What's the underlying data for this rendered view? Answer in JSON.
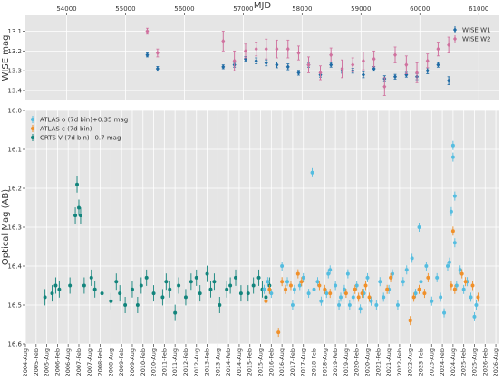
{
  "colors": {
    "panel_bg": "#e5e5e5",
    "grid": "#ffffff",
    "wise_w1": "#1f6ba5",
    "wise_w2": "#d0729f",
    "atlas_o": "#55bde0",
    "atlas_c": "#f0902a",
    "crts_v": "#12847c"
  },
  "chart_data": [
    {
      "type": "scatter",
      "panel": "top",
      "title": "",
      "xlabel": "MJD",
      "ylabel": "WISE mag",
      "xlim": [
        53300,
        61350
      ],
      "ylim": [
        13.45,
        13.02
      ],
      "y_inverted": true,
      "x_ticks": [
        54000,
        55000,
        56000,
        57000,
        58000,
        59000,
        60000,
        61000
      ],
      "y_ticks": [
        13.1,
        13.2,
        13.3,
        13.4
      ],
      "x_tick_labels": [
        "54000",
        "55000",
        "56000",
        "57000",
        "58000",
        "59000",
        "60000",
        "61000"
      ],
      "y_tick_labels": [
        "13.1",
        "13.2",
        "13.3",
        "13.4"
      ],
      "grid": true,
      "legend_position": "top-right",
      "series": [
        {
          "name": "WISE W1",
          "marker": "diamond",
          "x": [
            55370,
            55545,
            56660,
            56850,
            57040,
            57220,
            57390,
            57570,
            57760,
            57940,
            58110,
            58310,
            58490,
            58680,
            58860,
            59040,
            59220,
            59400,
            59580,
            59770,
            59950,
            60130,
            60310,
            60490
          ],
          "y": [
            13.22,
            13.29,
            13.28,
            13.27,
            13.24,
            13.25,
            13.26,
            13.27,
            13.28,
            13.31,
            13.27,
            13.32,
            13.27,
            13.3,
            13.3,
            13.32,
            13.29,
            13.34,
            13.33,
            13.32,
            13.33,
            13.3,
            13.27,
            13.35
          ],
          "err": [
            0.01,
            0.012,
            0.01,
            0.012,
            0.012,
            0.015,
            0.015,
            0.015,
            0.015,
            0.012,
            0.012,
            0.012,
            0.012,
            0.012,
            0.012,
            0.015,
            0.012,
            0.015,
            0.012,
            0.012,
            0.015,
            0.015,
            0.012,
            0.02
          ]
        },
        {
          "name": "WISE W2",
          "marker": "diamond",
          "x": [
            55370,
            55545,
            56660,
            56850,
            57040,
            57220,
            57390,
            57570,
            57760,
            57940,
            58110,
            58310,
            58490,
            58680,
            58860,
            59040,
            59220,
            59400,
            59580,
            59770,
            59950,
            60130,
            60310,
            60490
          ],
          "y": [
            13.1,
            13.21,
            13.15,
            13.25,
            13.2,
            13.19,
            13.19,
            13.19,
            13.19,
            13.21,
            13.27,
            13.31,
            13.22,
            13.29,
            13.27,
            13.25,
            13.24,
            13.38,
            13.22,
            13.27,
            13.31,
            13.25,
            13.19,
            13.17
          ],
          "err": [
            0.015,
            0.02,
            0.05,
            0.05,
            0.035,
            0.035,
            0.05,
            0.045,
            0.045,
            0.035,
            0.04,
            0.035,
            0.035,
            0.045,
            0.035,
            0.045,
            0.04,
            0.045,
            0.04,
            0.045,
            0.05,
            0.035,
            0.035,
            0.04
          ]
        }
      ]
    },
    {
      "type": "scatter",
      "panel": "bottom",
      "title": "",
      "xlabel": "",
      "ylabel": "Optical Mag (AB)",
      "xlim": [
        "2004-08",
        "2026-10"
      ],
      "ylim": [
        16.6,
        16.0
      ],
      "y_inverted": true,
      "y_ticks": [
        16.0,
        16.1,
        16.2,
        16.3,
        16.4,
        16.5,
        16.6
      ],
      "y_tick_labels": [
        "16.0",
        "16.1",
        "16.2",
        "16.3",
        "16.4",
        "16.5",
        "16.6"
      ],
      "x_tick_labels": [
        "2004-Aug",
        "2005-Feb",
        "2005-Aug",
        "2006-Feb",
        "2006-Aug",
        "2007-Feb",
        "2007-Aug",
        "2008-Feb",
        "2008-Aug",
        "2009-Feb",
        "2009-Aug",
        "2010-Feb",
        "2010-Aug",
        "2011-Feb",
        "2011-Aug",
        "2012-Feb",
        "2012-Aug",
        "2013-Feb",
        "2013-Aug",
        "2014-Feb",
        "2014-Aug",
        "2015-Feb",
        "2015-Aug",
        "2016-Feb",
        "2016-Aug",
        "2017-Feb",
        "2017-Aug",
        "2018-Feb",
        "2018-Aug",
        "2019-Feb",
        "2019-Aug",
        "2020-Feb",
        "2020-Aug",
        "2021-Feb",
        "2021-Aug",
        "2022-Feb",
        "2022-Aug",
        "2023-Feb",
        "2023-Aug",
        "2024-Feb",
        "2024-Aug",
        "2025-Feb",
        "2025-Aug",
        "2026-Feb",
        "2026-Aug"
      ],
      "grid": true,
      "legend_position": "top-left",
      "series": [
        {
          "name": "ATLAS o (7d bin)+0.35 mag",
          "marker": "circle",
          "points": [
            [
              "2015-10",
              16.46
            ],
            [
              "2015-12",
              16.44
            ],
            [
              "2016-02",
              16.47
            ],
            [
              "2016-08",
              16.4
            ],
            [
              "2016-11",
              16.44
            ],
            [
              "2017-02",
              16.5
            ],
            [
              "2017-03",
              16.46
            ],
            [
              "2017-06",
              16.45
            ],
            [
              "2017-08",
              16.43
            ],
            [
              "2017-11",
              16.47
            ],
            [
              "2018-01",
              16.16
            ],
            [
              "2018-02",
              16.46
            ],
            [
              "2018-04",
              16.44
            ],
            [
              "2018-06",
              16.49
            ],
            [
              "2018-09",
              16.47
            ],
            [
              "2018-10",
              16.42
            ],
            [
              "2018-11",
              16.41
            ],
            [
              "2019-02",
              16.45
            ],
            [
              "2019-04",
              16.5
            ],
            [
              "2019-05",
              16.48
            ],
            [
              "2019-07",
              16.46
            ],
            [
              "2019-09",
              16.42
            ],
            [
              "2019-10",
              16.5
            ],
            [
              "2019-12",
              16.48
            ],
            [
              "2020-02",
              16.45
            ],
            [
              "2020-04",
              16.51
            ],
            [
              "2020-06",
              16.47
            ],
            [
              "2020-08",
              16.43
            ],
            [
              "2020-10",
              16.49
            ],
            [
              "2021-01",
              16.5
            ],
            [
              "2021-03",
              16.44
            ],
            [
              "2021-05",
              16.48
            ],
            [
              "2021-08",
              16.46
            ],
            [
              "2021-10",
              16.42
            ],
            [
              "2022-01",
              16.5
            ],
            [
              "2022-04",
              16.44
            ],
            [
              "2022-06",
              16.41
            ],
            [
              "2022-09",
              16.38
            ],
            [
              "2022-11",
              16.47
            ],
            [
              "2023-01",
              16.3
            ],
            [
              "2023-02",
              16.44
            ],
            [
              "2023-05",
              16.4
            ],
            [
              "2023-08",
              16.49
            ],
            [
              "2023-11",
              16.43
            ],
            [
              "2024-01",
              16.48
            ],
            [
              "2024-03",
              16.52
            ],
            [
              "2024-05",
              16.4
            ],
            [
              "2024-06",
              16.39
            ],
            [
              "2024-07",
              16.26
            ],
            [
              "2024-08",
              16.09
            ],
            [
              "2024-08",
              16.12
            ],
            [
              "2024-09",
              16.22
            ],
            [
              "2024-09",
              16.34
            ],
            [
              "2024-10",
              16.45
            ],
            [
              "2024-12",
              16.41
            ],
            [
              "2025-02",
              16.46
            ],
            [
              "2025-04",
              16.44
            ],
            [
              "2025-06",
              16.48
            ],
            [
              "2025-08",
              16.53
            ],
            [
              "2025-09",
              16.5
            ]
          ]
        },
        {
          "name": "ATLAS c (7d bin)",
          "marker": "circle",
          "points": [
            [
              "2015-11",
              16.49
            ],
            [
              "2016-01",
              16.46
            ],
            [
              "2016-06",
              16.57
            ],
            [
              "2016-08",
              16.44
            ],
            [
              "2016-10",
              16.46
            ],
            [
              "2017-01",
              16.45
            ],
            [
              "2017-05",
              16.42
            ],
            [
              "2017-07",
              16.44
            ],
            [
              "2018-05",
              16.45
            ],
            [
              "2018-08",
              16.46
            ],
            [
              "2018-11",
              16.47
            ],
            [
              "2019-08",
              16.47
            ],
            [
              "2020-01",
              16.46
            ],
            [
              "2020-03",
              16.48
            ],
            [
              "2020-05",
              16.47
            ],
            [
              "2020-07",
              16.45
            ],
            [
              "2020-09",
              16.48
            ],
            [
              "2021-07",
              16.46
            ],
            [
              "2021-09",
              16.43
            ],
            [
              "2022-08",
              16.54
            ],
            [
              "2022-10",
              16.48
            ],
            [
              "2023-01",
              16.46
            ],
            [
              "2023-04",
              16.47
            ],
            [
              "2023-06",
              16.43
            ],
            [
              "2024-07",
              16.45
            ],
            [
              "2024-08",
              16.31
            ],
            [
              "2024-09",
              16.46
            ],
            [
              "2025-01",
              16.42
            ],
            [
              "2025-03",
              16.44
            ],
            [
              "2025-07",
              16.45
            ],
            [
              "2025-10",
              16.48
            ]
          ]
        },
        {
          "name": "CRTS V (7d bin)+0.7 mag",
          "marker": "circle",
          "points": [
            [
              "2005-07",
              16.48
            ],
            [
              "2005-11",
              16.47
            ],
            [
              "2006-01",
              16.45
            ],
            [
              "2006-03",
              16.46
            ],
            [
              "2006-09",
              16.45
            ],
            [
              "2006-12",
              16.27
            ],
            [
              "2007-01",
              16.19
            ],
            [
              "2007-02",
              16.25
            ],
            [
              "2007-03",
              16.27
            ],
            [
              "2007-05",
              16.45
            ],
            [
              "2007-09",
              16.43
            ],
            [
              "2007-11",
              16.46
            ],
            [
              "2008-03",
              16.47
            ],
            [
              "2008-08",
              16.49
            ],
            [
              "2008-11",
              16.44
            ],
            [
              "2009-01",
              16.47
            ],
            [
              "2009-04",
              16.5
            ],
            [
              "2009-08",
              16.46
            ],
            [
              "2009-11",
              16.5
            ],
            [
              "2010-01",
              16.45
            ],
            [
              "2010-04",
              16.43
            ],
            [
              "2010-08",
              16.47
            ],
            [
              "2011-01",
              16.48
            ],
            [
              "2011-03",
              16.44
            ],
            [
              "2011-05",
              16.46
            ],
            [
              "2011-08",
              16.52
            ],
            [
              "2011-10",
              16.45
            ],
            [
              "2012-02",
              16.48
            ],
            [
              "2012-05",
              16.44
            ],
            [
              "2012-08",
              16.43
            ],
            [
              "2012-10",
              16.47
            ],
            [
              "2013-02",
              16.42
            ],
            [
              "2013-04",
              16.46
            ],
            [
              "2013-06",
              16.44
            ],
            [
              "2013-09",
              16.5
            ],
            [
              "2014-01",
              16.46
            ],
            [
              "2014-03",
              16.45
            ],
            [
              "2014-06",
              16.43
            ],
            [
              "2014-09",
              16.47
            ],
            [
              "2015-01",
              16.47
            ],
            [
              "2015-04",
              16.45
            ],
            [
              "2015-07",
              16.43
            ],
            [
              "2015-09",
              16.46
            ],
            [
              "2015-11",
              16.48
            ],
            [
              "2016-01",
              16.45
            ]
          ]
        }
      ]
    }
  ]
}
